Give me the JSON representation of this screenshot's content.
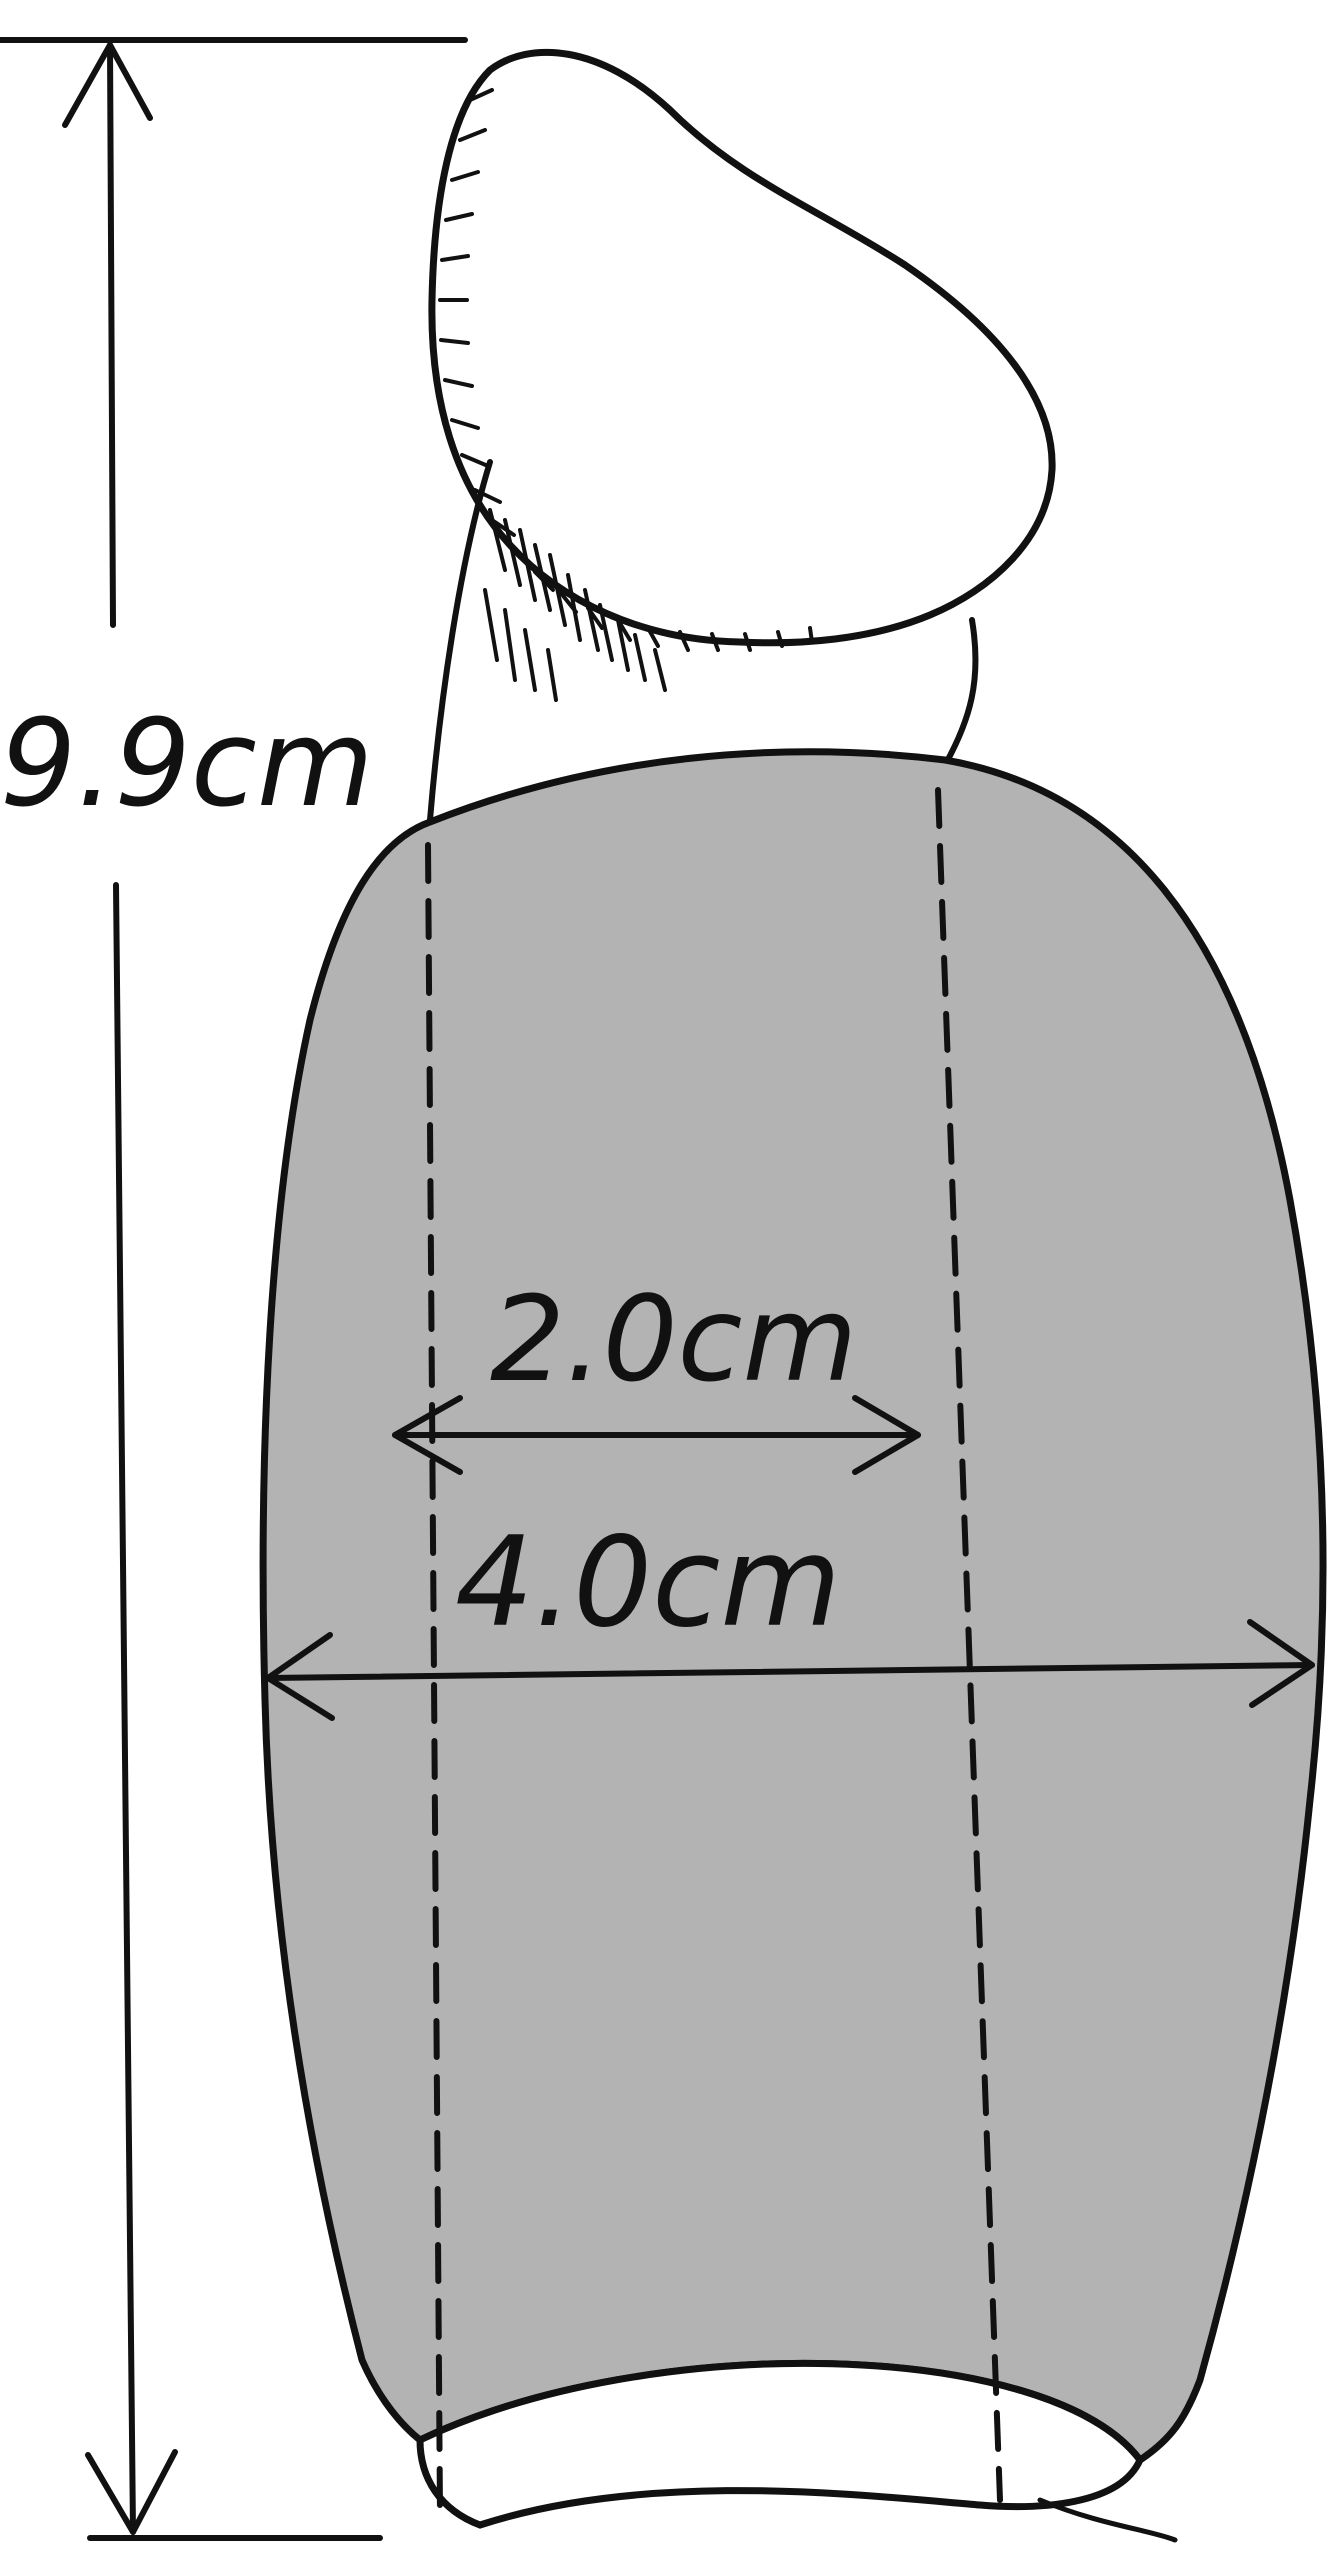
{
  "diagram": {
    "labels": {
      "height": "9.9cm",
      "inner_width": "2.0cm",
      "outer_width": "4.0cm"
    },
    "colors": {
      "line": "#111111",
      "sleeve_fill": "#b3b3b3",
      "background": "#ffffff"
    }
  }
}
